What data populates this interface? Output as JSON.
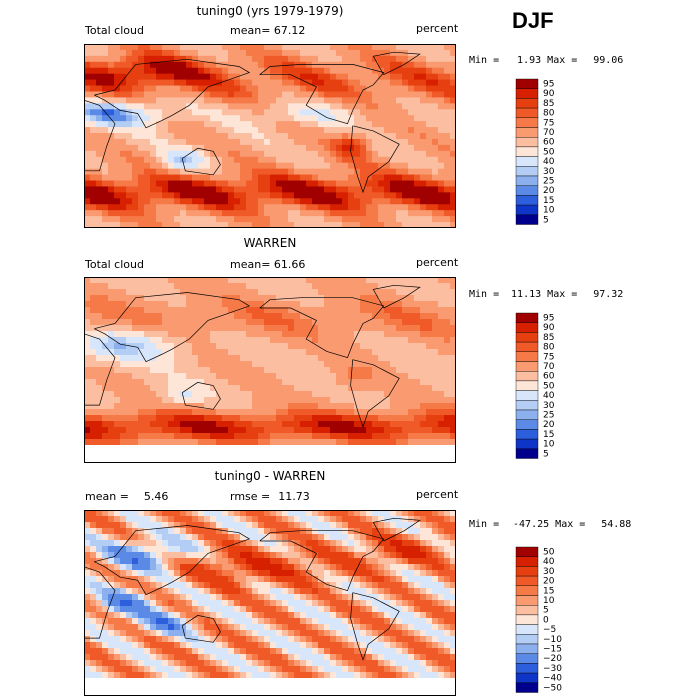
{
  "season": "DJF",
  "panels": [
    {
      "title": "tuning0 (yrs 1979-1979)",
      "left_label": "Total cloud",
      "center_label": "mean=",
      "center_value": "67.12",
      "right_label": "percent",
      "min_label": "Min =",
      "min_value": "1.93",
      "max_label": "Max =",
      "max_value": "99.06"
    },
    {
      "title": "WARREN",
      "left_label": "Total cloud",
      "center_label": "mean=",
      "center_value": "61.66",
      "right_label": "percent",
      "min_label": "Min =",
      "min_value": "11.13",
      "max_label": "Max =",
      "max_value": "97.32"
    },
    {
      "title": "tuning0 - WARREN",
      "left_label": "mean =",
      "left_value": "5.46",
      "center_label": "rmse =",
      "center_value": "11.73",
      "right_label": "percent",
      "min_label": "Min =",
      "min_value": "-47.25",
      "max_label": "Max =",
      "max_value": "54.88"
    }
  ],
  "chart_data": [
    {
      "type": "heatmap",
      "title": "tuning0 (yrs 1979-1979)",
      "variable": "Total cloud",
      "units": "percent",
      "mean": 67.12,
      "min": 1.93,
      "max": 99.06,
      "colorbar_levels": [
        95,
        90,
        85,
        80,
        75,
        70,
        60,
        50,
        40,
        30,
        25,
        20,
        15,
        10,
        5
      ],
      "colorbar_colors": [
        "#a00000",
        "#d62000",
        "#e64010",
        "#f05a28",
        "#f67a48",
        "#f99a70",
        "#fbbea0",
        "#fde6d8",
        "#d8e6fb",
        "#b4cdf5",
        "#8cb0ee",
        "#5a8ae6",
        "#2d5edc",
        "#0f34c8",
        "#00008c"
      ]
    },
    {
      "type": "heatmap",
      "title": "WARREN",
      "variable": "Total cloud",
      "units": "percent",
      "mean": 61.66,
      "min": 11.13,
      "max": 97.32,
      "colorbar_levels": [
        95,
        90,
        85,
        80,
        75,
        70,
        60,
        50,
        40,
        30,
        25,
        20,
        15,
        10,
        5
      ],
      "colorbar_colors": [
        "#a00000",
        "#d62000",
        "#e64010",
        "#f05a28",
        "#f67a48",
        "#f99a70",
        "#fbbea0",
        "#fde6d8",
        "#d8e6fb",
        "#b4cdf5",
        "#8cb0ee",
        "#5a8ae6",
        "#2d5edc",
        "#0f34c8",
        "#00008c"
      ]
    },
    {
      "type": "heatmap",
      "title": "tuning0 - WARREN",
      "units": "percent",
      "mean": 5.46,
      "rmse": 11.73,
      "min": -47.25,
      "max": 54.88,
      "colorbar_levels": [
        "50",
        "40",
        "30",
        "20",
        "15",
        "10",
        "5",
        "0",
        "−5",
        "−10",
        "−15",
        "−20",
        "−30",
        "−40",
        "−50"
      ],
      "colorbar_colors": [
        "#a00000",
        "#d62000",
        "#e64010",
        "#f05a28",
        "#f67a48",
        "#f99a70",
        "#fbbea0",
        "#fde6d8",
        "#d8e6fb",
        "#b4cdf5",
        "#8cb0ee",
        "#5a8ae6",
        "#2d5edc",
        "#0f34c8",
        "#00008c"
      ]
    }
  ]
}
